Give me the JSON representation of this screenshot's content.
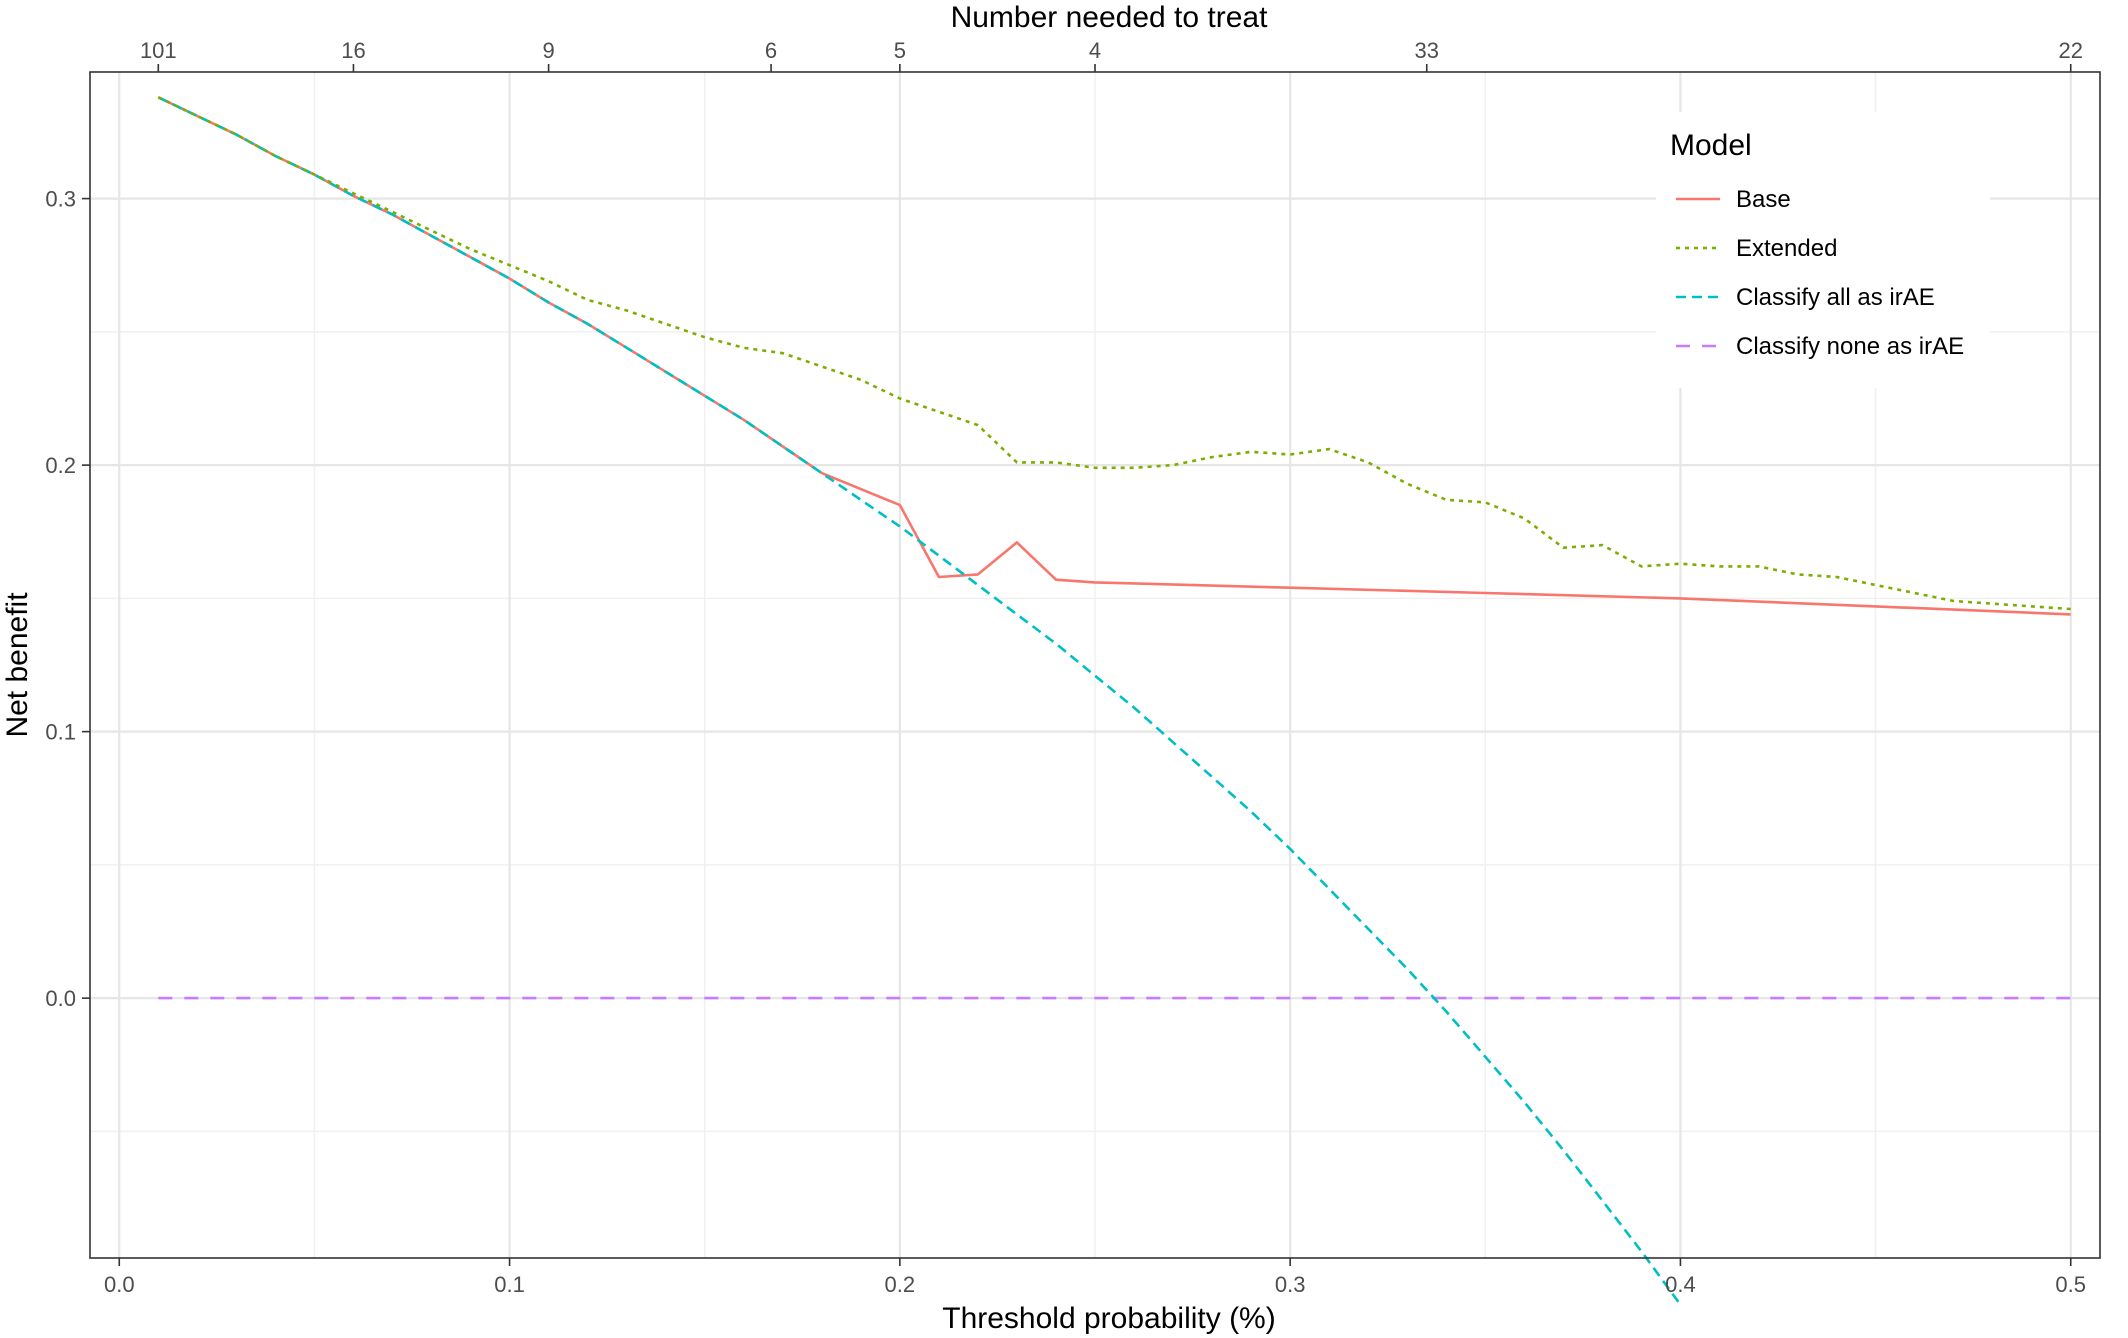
{
  "chart_data": {
    "type": "line",
    "xlabel": "Threshold probability (%)",
    "ylabel": "Net benefit",
    "top_axis_label": "Number needed to treat",
    "xlim": [
      -0.0075,
      0.5075
    ],
    "ylim": [
      -0.0975,
      0.3475
    ],
    "x_ticks": [
      0.0,
      0.1,
      0.2,
      0.3,
      0.4,
      0.5
    ],
    "x_tick_labels": [
      "0.0",
      "0.1",
      "0.2",
      "0.3",
      "0.4",
      "0.5"
    ],
    "y_ticks": [
      0.0,
      0.1,
      0.2,
      0.3
    ],
    "y_tick_labels": [
      "0.0",
      "0.1",
      "0.2",
      "0.3"
    ],
    "x_minor_grid": [
      0.05,
      0.15,
      0.25,
      0.35,
      0.45
    ],
    "y_minor_grid": [
      -0.05,
      0.05,
      0.15,
      0.25
    ],
    "top_ticks": [
      {
        "x": 0.01,
        "label": "101"
      },
      {
        "x": 0.06,
        "label": "16"
      },
      {
        "x": 0.11,
        "label": "9"
      },
      {
        "x": 0.167,
        "label": "6"
      },
      {
        "x": 0.2,
        "label": "5"
      },
      {
        "x": 0.25,
        "label": "4"
      },
      {
        "x": 0.335,
        "label": "33"
      },
      {
        "x": 0.5,
        "label": "22"
      }
    ],
    "grid": true,
    "legend": {
      "title": "Model",
      "position": "top-right"
    },
    "series": [
      {
        "name": "Base",
        "color": "#F8766D",
        "dash": "solid",
        "x": [
          0.01,
          0.02,
          0.03,
          0.04,
          0.05,
          0.06,
          0.07,
          0.08,
          0.09,
          0.1,
          0.11,
          0.12,
          0.13,
          0.14,
          0.15,
          0.16,
          0.17,
          0.18,
          0.19,
          0.2,
          0.21,
          0.22,
          0.23,
          0.24,
          0.25,
          0.3,
          0.35,
          0.4,
          0.45,
          0.5
        ],
        "y": [
          0.338,
          0.331,
          0.324,
          0.316,
          0.309,
          0.301,
          0.294,
          0.286,
          0.278,
          0.27,
          0.261,
          0.253,
          0.244,
          0.235,
          0.226,
          0.217,
          0.207,
          0.197,
          0.191,
          0.185,
          0.158,
          0.159,
          0.171,
          0.157,
          0.156,
          0.154,
          0.152,
          0.15,
          0.147,
          0.144
        ]
      },
      {
        "name": "Extended",
        "color": "#7CAE00",
        "dash": "dotted",
        "x": [
          0.01,
          0.02,
          0.03,
          0.04,
          0.05,
          0.06,
          0.07,
          0.08,
          0.09,
          0.1,
          0.11,
          0.12,
          0.13,
          0.14,
          0.15,
          0.16,
          0.17,
          0.18,
          0.19,
          0.2,
          0.21,
          0.22,
          0.23,
          0.24,
          0.25,
          0.26,
          0.27,
          0.28,
          0.29,
          0.3,
          0.31,
          0.32,
          0.33,
          0.34,
          0.35,
          0.36,
          0.37,
          0.38,
          0.39,
          0.4,
          0.41,
          0.42,
          0.43,
          0.44,
          0.45,
          0.46,
          0.47,
          0.48,
          0.49,
          0.5
        ],
        "y": [
          0.338,
          0.331,
          0.324,
          0.316,
          0.309,
          0.302,
          0.295,
          0.288,
          0.281,
          0.275,
          0.269,
          0.262,
          0.258,
          0.253,
          0.248,
          0.244,
          0.242,
          0.237,
          0.232,
          0.225,
          0.22,
          0.215,
          0.201,
          0.201,
          0.199,
          0.199,
          0.2,
          0.203,
          0.205,
          0.204,
          0.206,
          0.201,
          0.193,
          0.187,
          0.186,
          0.18,
          0.169,
          0.17,
          0.162,
          0.163,
          0.162,
          0.162,
          0.159,
          0.158,
          0.155,
          0.152,
          0.149,
          0.148,
          0.147,
          0.146
        ]
      },
      {
        "name": "Classify all as irAE",
        "color": "#00BFC4",
        "dash": "dashed",
        "x": [
          0.01,
          0.02,
          0.03,
          0.04,
          0.05,
          0.06,
          0.07,
          0.08,
          0.09,
          0.1,
          0.11,
          0.12,
          0.13,
          0.14,
          0.15,
          0.16,
          0.17,
          0.18,
          0.19,
          0.2,
          0.21,
          0.22,
          0.23,
          0.24,
          0.25,
          0.26,
          0.27,
          0.28,
          0.29,
          0.3,
          0.31,
          0.32,
          0.33,
          0.34,
          0.35,
          0.36,
          0.37,
          0.38,
          0.39,
          0.4
        ],
        "y": [
          0.338,
          0.331,
          0.324,
          0.316,
          0.309,
          0.301,
          0.294,
          0.286,
          0.278,
          0.27,
          0.261,
          0.253,
          0.244,
          0.235,
          0.226,
          0.217,
          0.207,
          0.197,
          0.187,
          0.177,
          0.166,
          0.155,
          0.144,
          0.133,
          0.121,
          0.109,
          0.096,
          0.083,
          0.07,
          0.056,
          0.041,
          0.026,
          0.011,
          -0.005,
          -0.022,
          -0.039,
          -0.057,
          -0.076,
          -0.095,
          -0.115
        ]
      },
      {
        "name": "Classify none as irAE",
        "color": "#C77CFF",
        "dash": "longdash",
        "x": [
          0.01,
          0.5
        ],
        "y": [
          0.0,
          0.0
        ]
      }
    ]
  }
}
